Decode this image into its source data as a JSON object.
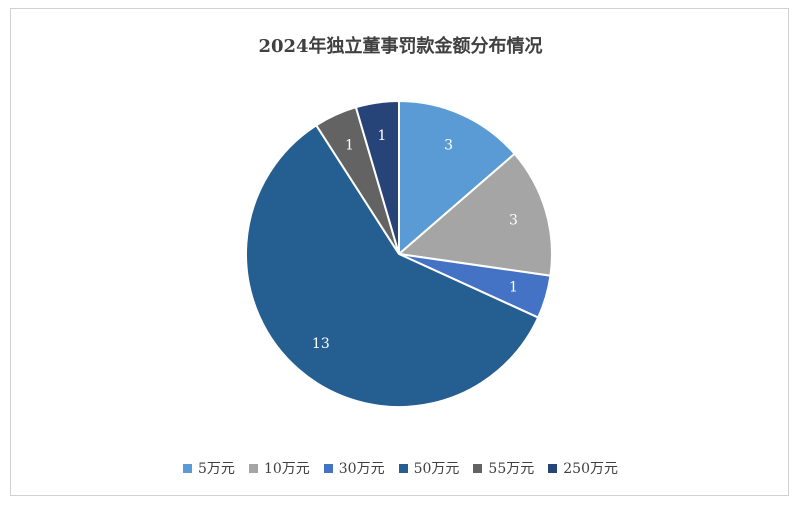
{
  "chart_data": {
    "type": "pie",
    "title": "2024年独立董事罚款金额分布情况",
    "categories": [
      "5万元",
      "10万元",
      "30万元",
      "50万元",
      "55万元",
      "250万元"
    ],
    "values": [
      3,
      3,
      1,
      13,
      1,
      1
    ],
    "colors": [
      "#5b9bd5",
      "#a5a5a5",
      "#4472c4",
      "#255e91",
      "#636363",
      "#264478"
    ],
    "data_labels": [
      "3",
      "3",
      "1",
      "13",
      "1",
      "1"
    ],
    "legend_position": "bottom",
    "start_angle": "12 o'clock",
    "direction": "clockwise"
  }
}
